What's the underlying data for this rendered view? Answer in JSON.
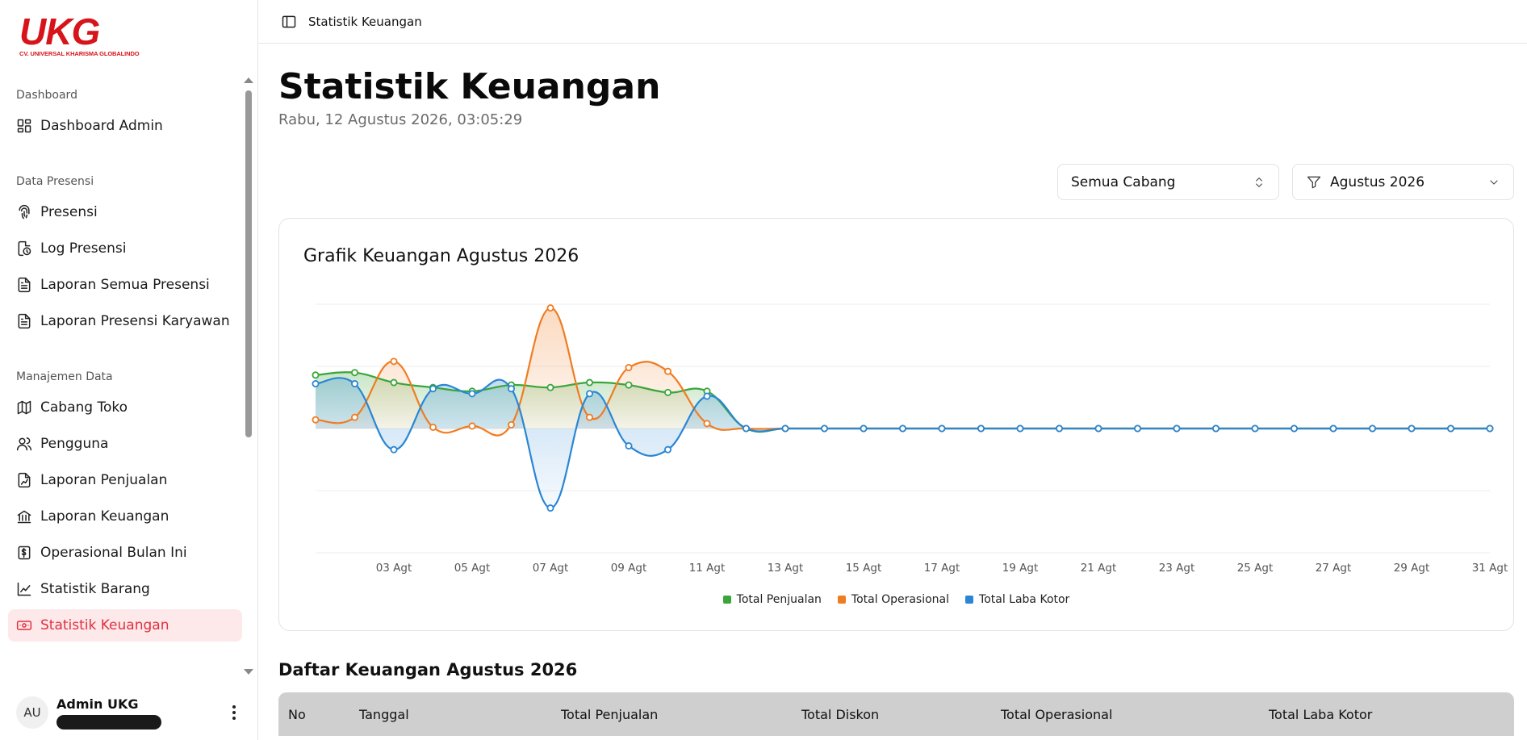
{
  "brand": {
    "logo_text": "UKG",
    "logo_subtitle": "CV. UNIVERSAL KHARISMA GLOBALINDO",
    "accent": "#d7141a"
  },
  "sidebar": {
    "groups": [
      {
        "label": "Dashboard",
        "items": [
          {
            "label": "Dashboard Admin",
            "icon": "dashboard-grid-icon"
          }
        ]
      },
      {
        "label": "Data Presensi",
        "items": [
          {
            "label": "Presensi",
            "icon": "fingerprint-icon"
          },
          {
            "label": "Log Presensi",
            "icon": "file-clock-icon"
          },
          {
            "label": "Laporan Semua Presensi",
            "icon": "file-text-icon"
          },
          {
            "label": "Laporan Presensi Karyawan",
            "icon": "file-text-icon"
          }
        ]
      },
      {
        "label": "Manajemen Data",
        "items": [
          {
            "label": "Cabang Toko",
            "icon": "map-icon"
          },
          {
            "label": "Pengguna",
            "icon": "users-icon"
          },
          {
            "label": "Laporan Penjualan",
            "icon": "file-chart-icon"
          },
          {
            "label": "Laporan Keuangan",
            "icon": "bank-icon"
          },
          {
            "label": "Operasional Bulan Ini",
            "icon": "dollar-file-icon"
          },
          {
            "label": "Statistik Barang",
            "icon": "chart-line-icon"
          },
          {
            "label": "Statistik Keuangan",
            "icon": "banknote-icon",
            "active": true
          }
        ]
      }
    ],
    "user": {
      "initials": "AU",
      "name": "Admin UKG"
    }
  },
  "topbar": {
    "breadcrumb": "Statistik Keuangan"
  },
  "page": {
    "title": "Statistik Keuangan",
    "datetime": "Rabu, 12 Agustus 2026, 03:05:29"
  },
  "filters": {
    "branch": "Semua Cabang",
    "month": "Agustus 2026"
  },
  "chart_card": {
    "title": "Grafik Keuangan Agustus 2026"
  },
  "chart_data": {
    "type": "area",
    "title": "Grafik Keuangan Agustus 2026",
    "x": [
      "01 Agt",
      "02 Agt",
      "03 Agt",
      "04 Agt",
      "05 Agt",
      "06 Agt",
      "07 Agt",
      "08 Agt",
      "09 Agt",
      "10 Agt",
      "11 Agt",
      "12 Agt",
      "13 Agt",
      "14 Agt",
      "15 Agt",
      "16 Agt",
      "17 Agt",
      "18 Agt",
      "19 Agt",
      "20 Agt",
      "21 Agt",
      "22 Agt",
      "23 Agt",
      "24 Agt",
      "25 Agt",
      "26 Agt",
      "27 Agt",
      "28 Agt",
      "29 Agt",
      "30 Agt",
      "31 Agt"
    ],
    "x_tick_labels": [
      "03 Agt",
      "05 Agt",
      "07 Agt",
      "09 Agt",
      "11 Agt",
      "13 Agt",
      "15 Agt",
      "17 Agt",
      "19 Agt",
      "21 Agt",
      "23 Agt",
      "25 Agt",
      "27 Agt",
      "29 Agt",
      "31 Agt"
    ],
    "series": [
      {
        "name": "Total Penjualan",
        "color": "#3aa63a",
        "values": [
          0.43,
          0.45,
          0.37,
          0.33,
          0.3,
          0.35,
          0.33,
          0.37,
          0.35,
          0.29,
          0.3,
          0,
          0,
          0,
          0,
          0,
          0,
          0,
          0,
          0,
          0,
          0,
          0,
          0,
          0,
          0,
          0,
          0,
          0,
          0,
          0
        ]
      },
      {
        "name": "Total Operasional",
        "color": "#f07c22",
        "values": [
          0.07,
          0.09,
          0.54,
          0.01,
          0.02,
          0.03,
          0.97,
          0.09,
          0.49,
          0.46,
          0.04,
          0,
          0,
          0,
          0,
          0,
          0,
          0,
          0,
          0,
          0,
          0,
          0,
          0,
          0,
          0,
          0,
          0,
          0,
          0,
          0
        ]
      },
      {
        "name": "Total Laba Kotor",
        "color": "#2a86d4",
        "values": [
          0.36,
          0.36,
          -0.17,
          0.32,
          0.28,
          0.32,
          -0.64,
          0.28,
          -0.14,
          -0.17,
          0.26,
          0,
          0,
          0,
          0,
          0,
          0,
          0,
          0,
          0,
          0,
          0,
          0,
          0,
          0,
          0,
          0,
          0,
          0,
          0,
          0
        ]
      }
    ],
    "ylim": [
      -1,
      1
    ],
    "grid": true,
    "legend": "bottom"
  },
  "table": {
    "title": "Daftar Keuangan Agustus 2026",
    "columns": [
      "No",
      "Tanggal",
      "Total Penjualan",
      "Total Diskon",
      "Total Operasional",
      "Total Laba Kotor"
    ]
  }
}
